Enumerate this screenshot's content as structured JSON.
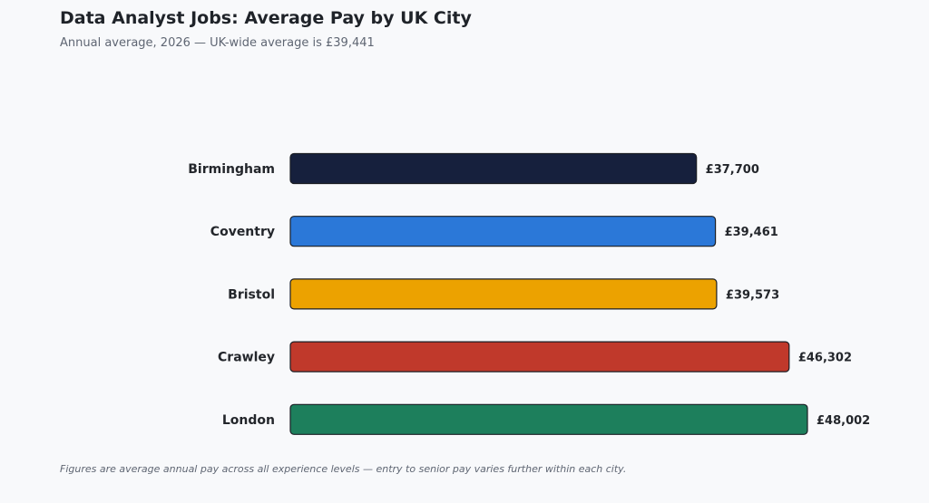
{
  "title": "Data Analyst Jobs: Average Pay by UK City",
  "subtitle": "Annual average, 2026 — UK-wide average is £39,441",
  "footnote": "Figures are average annual pay across all experience levels — entry to senior pay varies further within each city.",
  "chart_data": {
    "type": "bar",
    "orientation": "horizontal",
    "categories": [
      "Birmingham",
      "Coventry",
      "Bristol",
      "Crawley",
      "London"
    ],
    "values": [
      37700,
      39461,
      39573,
      46302,
      48002
    ],
    "value_labels": [
      "£37,700",
      "£39,461",
      "£39,573",
      "£46,302",
      "£48,002"
    ],
    "colors": [
      "#16203d",
      "#2b78d8",
      "#eca200",
      "#c0392b",
      "#1d7f5c"
    ],
    "xlim": [
      0,
      50000
    ],
    "grid": false,
    "legend": "none",
    "xlabel": "",
    "ylabel": ""
  }
}
